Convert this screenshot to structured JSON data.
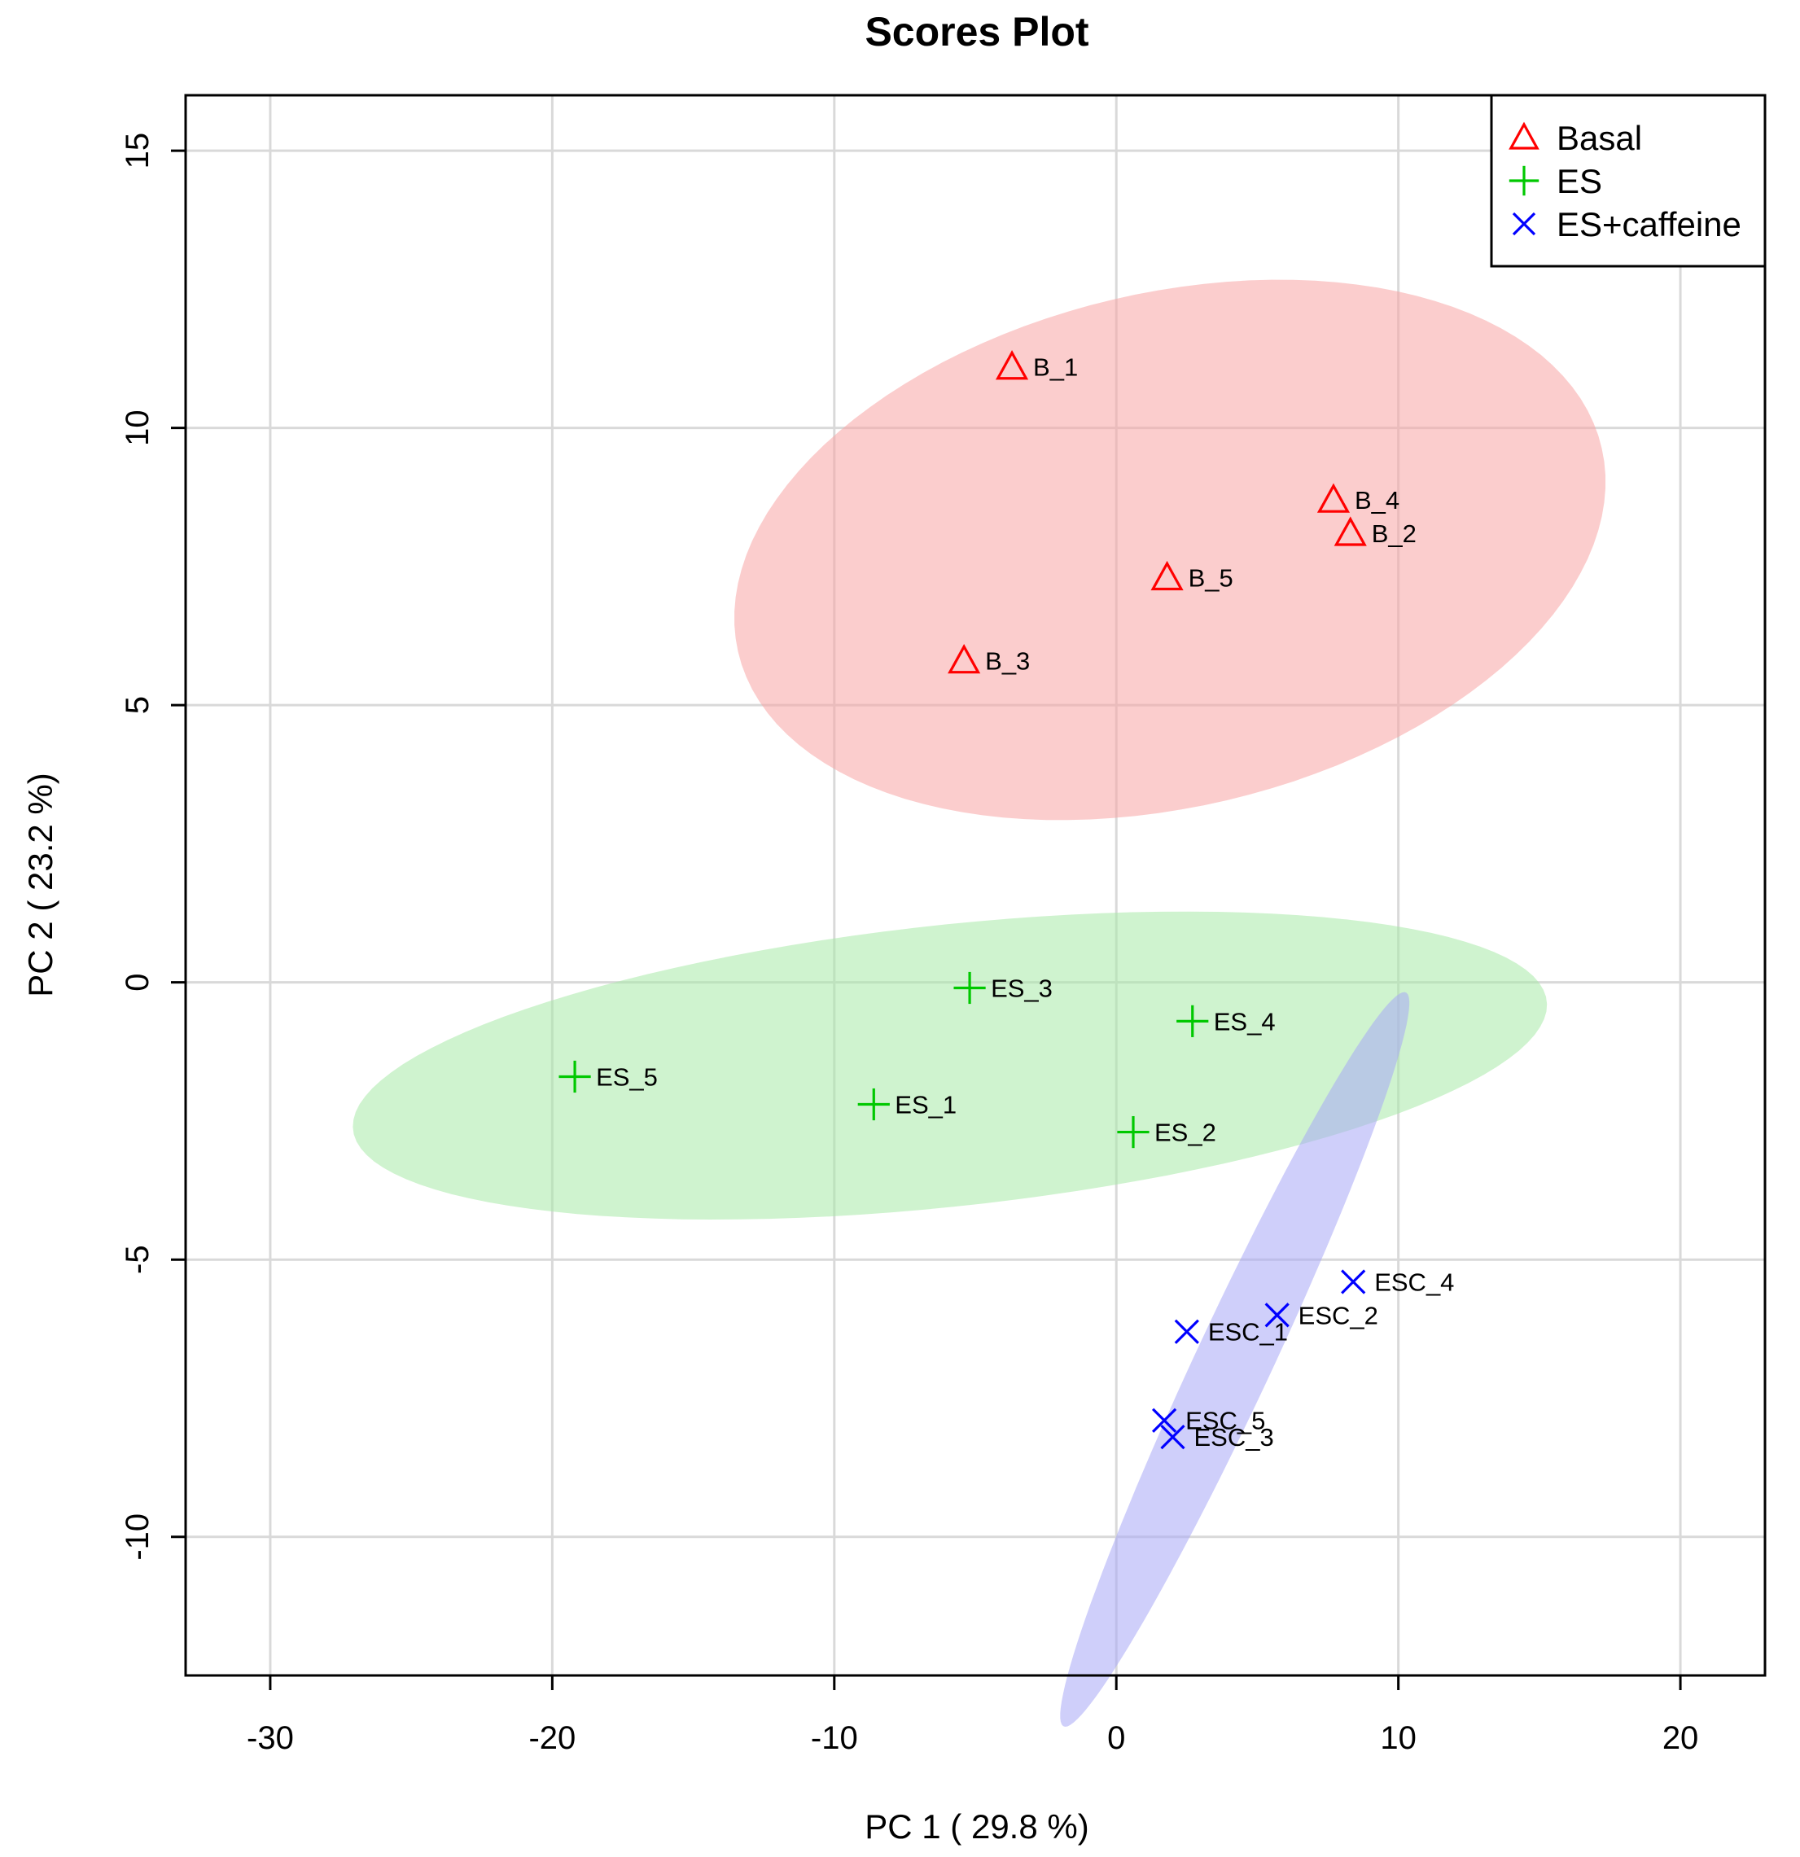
{
  "chart_data": {
    "type": "scatter",
    "title": "Scores Plot",
    "xlabel": "PC 1 ( 29.8 %)",
    "ylabel": "PC 2 ( 23.2 %)",
    "xlim": [
      -33,
      23
    ],
    "ylim": [
      -12.5,
      16
    ],
    "xticks": [
      -30,
      -20,
      -10,
      0,
      10,
      20
    ],
    "yticks": [
      -10,
      -5,
      0,
      5,
      10,
      15
    ],
    "xtick_labels": [
      "-30",
      "-20",
      "-10",
      "0",
      "10",
      "20"
    ],
    "ytick_labels": [
      "-10",
      "-5",
      "0",
      "5",
      "10",
      "15"
    ],
    "grid": true,
    "legend_position": "top-right",
    "series": [
      {
        "name": "Basal",
        "marker": "triangle",
        "color": "#ff0000",
        "ellipse_color": "#f8a4a4",
        "ellipse": {
          "cx": 1.9,
          "cy": 7.8,
          "rx": 15.5,
          "ry": 4.7,
          "angle_deg": 5
        },
        "points": [
          {
            "label": "B_1",
            "x": -3.7,
            "y": 11.1
          },
          {
            "label": "B_4",
            "x": 7.7,
            "y": 8.7
          },
          {
            "label": "B_2",
            "x": 8.3,
            "y": 8.1
          },
          {
            "label": "B_5",
            "x": 1.8,
            "y": 7.3
          },
          {
            "label": "B_3",
            "x": -5.4,
            "y": 5.8
          }
        ]
      },
      {
        "name": "ES",
        "marker": "plus",
        "color": "#00c800",
        "ellipse_color": "#a8eaa8",
        "ellipse": {
          "cx": -5.9,
          "cy": -1.5,
          "rx": 21.2,
          "ry": 2.55,
          "angle_deg": 3
        },
        "points": [
          {
            "label": "ES_3",
            "x": -5.2,
            "y": -0.1
          },
          {
            "label": "ES_4",
            "x": 2.7,
            "y": -0.7
          },
          {
            "label": "ES_5",
            "x": -19.2,
            "y": -1.7
          },
          {
            "label": "ES_1",
            "x": -8.6,
            "y": -2.2
          },
          {
            "label": "ES_2",
            "x": 0.6,
            "y": -2.7
          }
        ]
      },
      {
        "name": "ES+caffeine",
        "marker": "x",
        "color": "#0000ff",
        "ellipse_color": "#a8a8f6",
        "ellipse": {
          "cx": 4.2,
          "cy": -6.8,
          "rx": 9.0,
          "ry": 1.1,
          "angle_deg": 47
        },
        "points": [
          {
            "label": "ESC_4",
            "x": 8.4,
            "y": -5.4
          },
          {
            "label": "ESC_2",
            "x": 5.7,
            "y": -6.0
          },
          {
            "label": "ESC_1",
            "x": 2.5,
            "y": -6.3
          },
          {
            "label": "ESC_5",
            "x": 1.7,
            "y": -7.9
          },
          {
            "label": "ESC_3",
            "x": 2.0,
            "y": -8.2
          }
        ]
      }
    ]
  }
}
